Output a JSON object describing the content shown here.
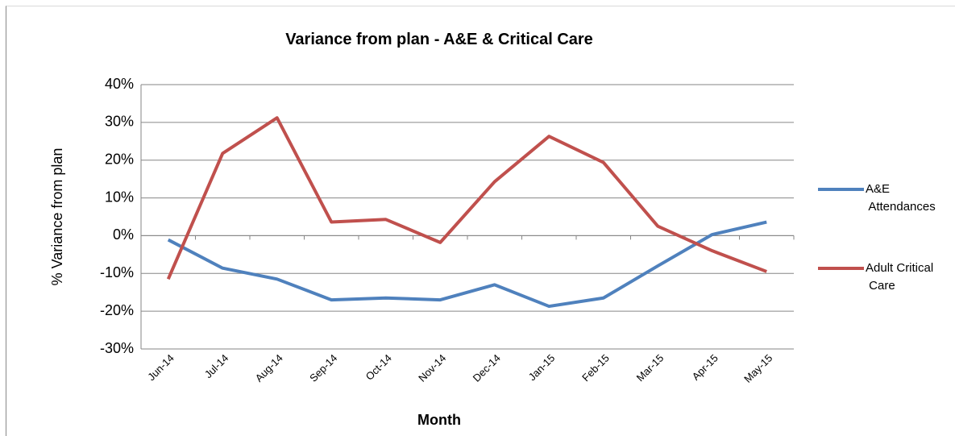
{
  "chart_data": {
    "type": "line",
    "title": "Variance from plan - A&E & Critical Care",
    "x_label": "Month",
    "y_label": "% Variance from plan",
    "categories": [
      "Jun-14",
      "Jul-14",
      "Aug-14",
      "Sep-14",
      "Oct-14",
      "Nov-14",
      "Dec-14",
      "Jan-15",
      "Feb-15",
      "Mar-15",
      "Apr-15",
      "May-15"
    ],
    "series": [
      {
        "name": "A&E Attendances",
        "color": "#4f81bd",
        "values": [
          -1.1,
          -8.6,
          -11.5,
          -17,
          -16.5,
          -17,
          -13,
          -18.7,
          -16.5,
          -8,
          0.3,
          3.6
        ]
      },
      {
        "name": "Adult Critical Care",
        "color": "#c0504d",
        "values": [
          -11.5,
          21.8,
          31.2,
          3.6,
          4.3,
          -1.8,
          14.3,
          26.3,
          19.4,
          2.5,
          -4,
          -9.5
        ]
      }
    ],
    "ylim": [
      -30,
      40
    ],
    "yticks": [
      {
        "value": -30,
        "label": "-30%"
      },
      {
        "value": -20,
        "label": "-20%"
      },
      {
        "value": -10,
        "label": "-10%"
      },
      {
        "value": 0,
        "label": "0%"
      },
      {
        "value": 10,
        "label": "10%"
      },
      {
        "value": 20,
        "label": "20%"
      },
      {
        "value": 30,
        "label": "30%"
      },
      {
        "value": 40,
        "label": "40%"
      }
    ],
    "grid": true,
    "legend": "right"
  }
}
